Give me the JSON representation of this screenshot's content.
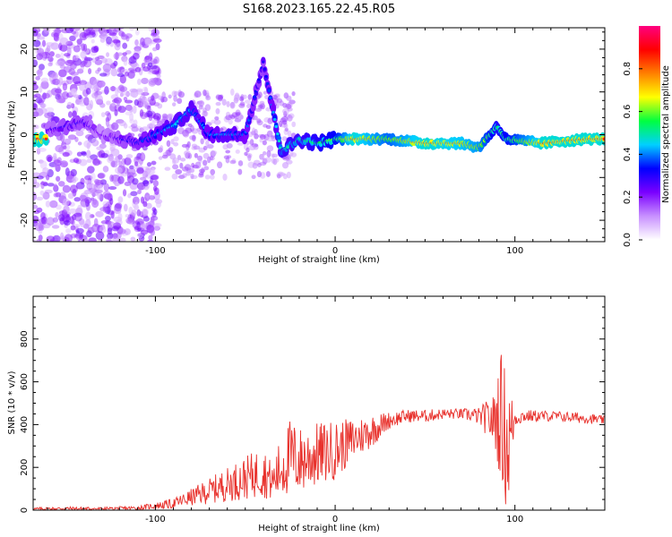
{
  "figure_title": "S168.2023.165.22.45.R05",
  "chart_data": [
    {
      "type": "heatmap",
      "title": "",
      "xlabel": "Height of straight line (km)",
      "ylabel": "Frequency (Hz)",
      "xlim": [
        -168,
        150
      ],
      "ylim": [
        -25,
        25
      ],
      "x_ticks": [
        -100,
        0,
        100
      ],
      "y_ticks": [
        -20,
        -10,
        0,
        10,
        20
      ],
      "colorbar": {
        "label": "Normalized spectral amplitude",
        "range": [
          0,
          1
        ],
        "ticks": [
          0.0,
          0.2,
          0.4,
          0.6,
          0.8
        ],
        "colormap": [
          "#ffffff",
          "#c890ff",
          "#7a00ff",
          "#0000ff",
          "#00d0ff",
          "#00ff40",
          "#ffff00",
          "#ff8000",
          "#ff0000",
          "#ff0080"
        ]
      },
      "ridge": [
        {
          "x": -160,
          "f": 1,
          "amp": 0.25
        },
        {
          "x": -150,
          "f": 2,
          "amp": 0.3
        },
        {
          "x": -140,
          "f": 3,
          "amp": 0.3
        },
        {
          "x": -130,
          "f": 0,
          "amp": 0.2
        },
        {
          "x": -110,
          "f": -2,
          "amp": 0.35
        },
        {
          "x": -100,
          "f": 0,
          "amp": 0.4
        },
        {
          "x": -90,
          "f": 2,
          "amp": 0.45
        },
        {
          "x": -80,
          "f": 6,
          "amp": 0.45
        },
        {
          "x": -70,
          "f": 0,
          "amp": 0.4
        },
        {
          "x": -60,
          "f": 0,
          "amp": 0.45
        },
        {
          "x": -50,
          "f": 0,
          "amp": 0.4
        },
        {
          "x": -40,
          "f": 17,
          "amp": 0.3
        },
        {
          "x": -30,
          "f": -4,
          "amp": 0.5
        },
        {
          "x": -20,
          "f": -1,
          "amp": 0.5
        },
        {
          "x": -10,
          "f": -2,
          "amp": 0.55
        },
        {
          "x": 0,
          "f": -1,
          "amp": 0.6
        },
        {
          "x": 10,
          "f": -1,
          "amp": 0.85
        },
        {
          "x": 30,
          "f": -1,
          "amp": 0.7
        },
        {
          "x": 50,
          "f": -2,
          "amp": 0.85
        },
        {
          "x": 70,
          "f": -2,
          "amp": 0.8
        },
        {
          "x": 80,
          "f": -3,
          "amp": 0.75
        },
        {
          "x": 90,
          "f": 2,
          "amp": 0.55
        },
        {
          "x": 95,
          "f": -1,
          "amp": 0.6
        },
        {
          "x": 115,
          "f": -2,
          "amp": 0.85
        },
        {
          "x": 140,
          "f": -1,
          "amp": 0.85
        }
      ]
    },
    {
      "type": "line",
      "title": "",
      "xlabel": "Height of straight line (km)",
      "ylabel": "SNR (10 * v/v)",
      "xlim": [
        -168,
        150
      ],
      "ylim": [
        0,
        1000
      ],
      "x_ticks": [
        -100,
        0,
        100
      ],
      "y_ticks": [
        0,
        200,
        400,
        600,
        800
      ],
      "series": [
        {
          "color": "#e8312c",
          "x": [
            -168,
            -150,
            -130,
            -110,
            -100,
            -90,
            -80,
            -70,
            -60,
            -50,
            -40,
            -35,
            -30,
            -25,
            -20,
            -10,
            0,
            10,
            20,
            30,
            40,
            50,
            60,
            70,
            80,
            88,
            92,
            96,
            100,
            105,
            120,
            140,
            150
          ],
          "values": [
            5,
            8,
            6,
            10,
            20,
            30,
            60,
            90,
            120,
            150,
            180,
            130,
            200,
            250,
            230,
            260,
            280,
            330,
            370,
            420,
            440,
            440,
            450,
            450,
            440,
            420,
            450,
            300,
            430,
            440,
            440,
            430,
            420
          ],
          "noise": [
            8,
            8,
            8,
            10,
            15,
            25,
            40,
            60,
            80,
            100,
            120,
            90,
            150,
            180,
            160,
            150,
            140,
            100,
            80,
            40,
            30,
            30,
            25,
            25,
            40,
            120,
            300,
            350,
            40,
            30,
            25,
            25,
            20
          ]
        }
      ]
    }
  ]
}
